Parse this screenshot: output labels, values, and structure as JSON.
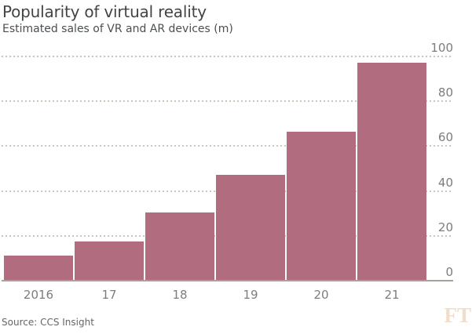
{
  "header": {
    "title": "Popularity of virtual reality",
    "subtitle": "Estimated sales of VR and AR devices (m)"
  },
  "footer": {
    "source": "Source: CCS Insight",
    "logo": "FT"
  },
  "colors": {
    "bar": "#b16c7f",
    "title_text": "#414548",
    "subtitle_text": "#4b4f52",
    "axis_label": "#7d7d7d",
    "gridline": "#cdc5ba",
    "axis_line": "#a3a39c",
    "source_text": "#666666",
    "ft_logo": "#f1ddc9",
    "background": "#ffffff"
  },
  "chart_data": {
    "type": "bar",
    "title": "Popularity of virtual reality",
    "subtitle": "Estimated sales of VR and AR devices (m)",
    "source": "Source: CCS Insight",
    "categories": [
      "2016",
      "17",
      "18",
      "19",
      "20",
      "21"
    ],
    "values": [
      11,
      17,
      30,
      47,
      66,
      97
    ],
    "series_name": "Estimated sales of VR and AR devices (m)",
    "xlabel": "",
    "ylabel": "",
    "ylim": [
      0,
      100
    ],
    "yticks": [
      0,
      20,
      40,
      60,
      80,
      100
    ],
    "y_axis_side": "right",
    "grid": "horizontal-dotted",
    "legend": "none",
    "bar_color": "#b16c7f"
  }
}
